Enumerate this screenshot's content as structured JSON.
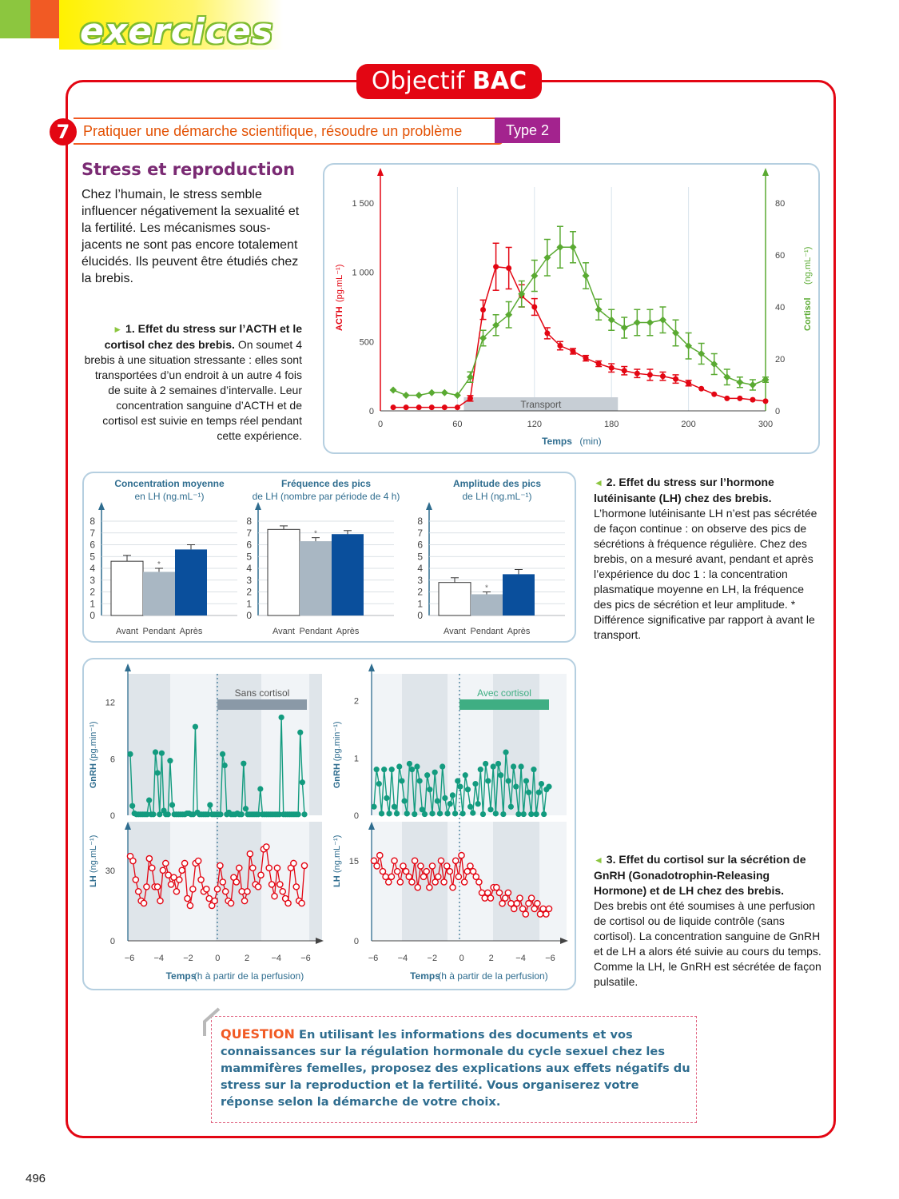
{
  "header": {
    "section_label": "exercices",
    "badge_prefix": "Objectif",
    "badge_strong": "BAC"
  },
  "exercise": {
    "number": "7",
    "title": "Pratiquer une démarche scientifique, résoudre un problème",
    "type": "Type 2",
    "heading": "Stress et reproduction",
    "intro": "Chez l’humain, le stress semble influencer négativement la sexualité et la fertilité. Les mécanismes sous-jacents ne sont pas encore totalement élucidés. Ils peuvent être étudiés chez la brebis."
  },
  "doc1": {
    "title": "1. Effet du stress sur l’ACTH et le cortisol chez des brebis.",
    "text": "On soumet 4 brebis à une situation stressante : elles sont transportées d’un endroit à un autre 4 fois de suite à 2 semaines d’intervalle. Leur concentration sanguine d’ACTH et de cortisol est suivie en temps réel pendant cette expérience."
  },
  "doc2": {
    "title": "2. Effet du stress sur l’hormone lutéinisante (LH) chez des brebis.",
    "text": "L’hormone lutéinisante LH n’est pas sécrétée de façon continue : on observe des pics de sécrétions à fréquence régulière. Chez des brebis, on a mesuré avant, pendant et après l’expérience du doc 1 : la concentration plasmatique moyenne en LH, la fréquence des pics de sécrétion et leur amplitude. * Différence significative par rapport à avant le transport."
  },
  "doc3": {
    "title": "3. Effet du cortisol sur la sécrétion de GnRH (Gonadotrophin-Releasing Hormone) et de LH chez des brebis.",
    "text": "Des brebis ont été soumises à une perfusion de cortisol ou de liquide contrôle (sans cortisol). La concentration sanguine de GnRH et de LH a alors été suivie au cours du temps. Comme la LH, le GnRH est sécrétée de façon pulsatile."
  },
  "question": {
    "label": "QUESTION",
    "text": "En utilisant les informations des documents et vos connaissances sur la régulation hormonale du cycle sexuel chez les mammifères femelles, proposez des explications aux effets négatifs du stress sur la reproduction et la fertilité. Vous organiserez votre réponse selon la démarche de votre choix."
  },
  "page_number": "496",
  "colors": {
    "red": "#e30613",
    "green": "#5aaa32",
    "teal": "#139b7f",
    "dark_blue": "#0a4f9c",
    "grey_bar": "#a9b7c3",
    "purple": "#a3238e"
  },
  "chart_data": [
    {
      "type": "line",
      "xlabel": "Temps",
      "xunit": "(min)",
      "xticks": [
        "0",
        "60",
        "120",
        "180",
        "200",
        "300"
      ],
      "ylabel_left": "ACTH",
      "yunit_left": "(pg.mL⁻¹)",
      "yticks_left": [
        "0",
        "500",
        "1 000",
        "1 500"
      ],
      "ylim_left": [
        0,
        1500
      ],
      "ylabel_right": "Cortisol",
      "yunit_right": "(ng.mL⁻¹)",
      "yticks_right": [
        "0",
        "20",
        "40",
        "60",
        "80"
      ],
      "ylim_right": [
        0,
        80
      ],
      "annotation": "Transport",
      "annotation_range": [
        65,
        185
      ],
      "series": [
        {
          "axis": "left",
          "x": [
            10,
            20,
            30,
            40,
            50,
            60,
            70,
            80,
            90,
            100,
            110,
            120,
            130,
            140,
            150,
            160,
            170,
            180,
            190,
            200,
            210,
            220,
            230,
            240,
            250,
            260,
            270,
            280,
            290,
            300
          ],
          "y": [
            25,
            25,
            25,
            25,
            25,
            25,
            90,
            730,
            1040,
            1030,
            830,
            750,
            560,
            470,
            430,
            380,
            340,
            310,
            290,
            270,
            260,
            250,
            230,
            200,
            160,
            120,
            90,
            90,
            80,
            70
          ],
          "err": [
            0,
            0,
            0,
            0,
            0,
            0,
            20,
            70,
            170,
            150,
            80,
            60,
            40,
            30,
            20,
            20,
            20,
            30,
            30,
            30,
            40,
            30,
            30,
            20,
            0,
            0,
            0,
            0,
            0,
            0
          ]
        },
        {
          "axis": "right",
          "x": [
            10,
            20,
            30,
            40,
            50,
            60,
            70,
            80,
            90,
            100,
            110,
            120,
            130,
            140,
            150,
            160,
            170,
            180,
            190,
            200,
            210,
            220,
            230,
            240,
            250,
            260,
            270,
            280,
            290,
            300
          ],
          "y": [
            8,
            6,
            6,
            7,
            7,
            6,
            13,
            28,
            33,
            37,
            45,
            52,
            59,
            63,
            63,
            52,
            39,
            35,
            32,
            34,
            34,
            35,
            30,
            25,
            22,
            18,
            13,
            11,
            10,
            12
          ],
          "err": [
            0,
            0,
            0,
            0,
            0,
            0,
            2,
            3,
            4,
            5,
            5,
            6,
            7,
            8,
            6,
            5,
            4,
            4,
            4,
            5,
            5,
            5,
            5,
            5,
            4,
            4,
            3,
            2,
            2,
            1
          ]
        }
      ]
    },
    {
      "type": "bar",
      "title": "Concentration moyenne en LH",
      "unit": "(ng.mL⁻¹)",
      "categories": [
        "Avant",
        "Pendant",
        "Après"
      ],
      "values": [
        4.6,
        3.7,
        5.6
      ],
      "err": [
        0.5,
        0.3,
        0.4
      ],
      "significant": [
        false,
        true,
        false
      ],
      "ylim": [
        0,
        8
      ],
      "yticks": [
        "0",
        "1",
        "2",
        "3",
        "4",
        "5",
        "6",
        "7",
        "8"
      ]
    },
    {
      "type": "bar",
      "title": "Fréquence des pics de LH",
      "unit": "(nombre par période de 4 h)",
      "categories": [
        "Avant",
        "Pendant",
        "Après"
      ],
      "values": [
        7.3,
        6.3,
        6.9
      ],
      "err": [
        0.3,
        0.3,
        0.3
      ],
      "significant": [
        false,
        true,
        false
      ],
      "ylim": [
        0,
        8
      ],
      "yticks": [
        "0",
        "1",
        "2",
        "3",
        "4",
        "5",
        "6",
        "7",
        "8"
      ]
    },
    {
      "type": "bar",
      "title": "Amplitude des pics de LH",
      "unit": "(ng.mL⁻¹)",
      "categories": [
        "Avant",
        "Pendant",
        "Après"
      ],
      "values": [
        2.8,
        1.8,
        3.5
      ],
      "err": [
        0.4,
        0.2,
        0.4
      ],
      "significant": [
        false,
        true,
        false
      ],
      "ylim": [
        0,
        8
      ],
      "yticks": [
        "0",
        "1",
        "2",
        "3",
        "4",
        "5",
        "6",
        "7",
        "8"
      ]
    },
    {
      "type": "line",
      "panel_label": "Sans cortisol",
      "xlabel": "Temps",
      "xunit": "(h à partir de la perfusion)",
      "xticks": [
        "−6",
        "−4",
        "−2",
        "0",
        "2",
        "−4",
        "−6"
      ],
      "gnrh": {
        "ylabel": "GnRH",
        "unit": "(pg.min⁻¹)",
        "yticks": [
          "0",
          "6",
          "12"
        ],
        "ylim": [
          0,
          14
        ],
        "values": [
          6.5,
          1,
          0.2,
          0.1,
          0.1,
          0.1,
          0.1,
          0.1,
          0.1,
          1.6,
          0.1,
          0.1,
          6.7,
          4.5,
          0.1,
          6.6,
          0.5,
          0.1,
          0.1,
          5.8,
          1.1,
          0.1,
          0.1,
          0.1,
          0.1,
          0.1,
          0.1,
          0.2,
          0.2,
          0.1,
          0.1,
          9.4,
          0.3,
          0.1,
          0.1,
          0.1,
          0.1,
          0.1,
          1.1,
          0.1,
          0.1,
          0.1,
          0.1,
          0.1,
          6.5,
          5.3,
          0.1,
          0.3,
          0.1,
          0.1,
          0.1,
          0.2,
          0.1,
          0.1,
          5.5,
          0.7,
          0.1,
          0.1,
          0.1,
          0.1,
          0.1,
          0.1,
          2.8,
          0.1,
          0.1,
          0.1,
          0.1,
          0.1,
          0.1,
          0.1,
          0.1,
          0.1,
          10.4,
          0.1,
          0.1,
          0.1,
          0.1,
          0.1,
          0.1,
          0.1,
          0.1,
          8.8,
          3.5,
          0.1
        ]
      },
      "lh": {
        "ylabel": "LH",
        "unit": "(ng.mL⁻¹)",
        "yticks": [
          "0",
          "30"
        ],
        "ylim": [
          0,
          50
        ],
        "values": [
          36,
          34,
          26,
          21,
          17,
          16,
          23,
          35,
          31,
          23,
          23,
          17,
          30,
          33,
          28,
          24,
          27,
          21,
          26,
          30,
          33,
          18,
          15,
          22,
          33,
          34,
          26,
          21,
          22,
          18,
          15,
          17,
          22,
          32,
          25,
          21,
          17,
          16,
          27,
          25,
          31,
          21,
          17,
          21,
          37,
          31,
          24,
          23,
          28,
          39,
          40,
          31,
          24,
          19,
          31,
          24,
          21,
          18,
          16,
          31,
          33,
          23,
          17,
          16,
          32
        ]
      }
    },
    {
      "type": "line",
      "panel_label": "Avec cortisol",
      "xlabel": "Temps",
      "xunit": "(h à partir de la perfusion)",
      "xticks": [
        "−6",
        "−4",
        "−2",
        "0",
        "2",
        "−4",
        "−6"
      ],
      "gnrh": {
        "ylabel": "GnRH",
        "unit": "(pg.min⁻¹)",
        "yticks": [
          "0",
          "1",
          "2"
        ],
        "ylim": [
          0,
          2.3
        ],
        "values": [
          0.15,
          0.8,
          0.55,
          0.03,
          0.8,
          0.3,
          0.03,
          0.8,
          0.15,
          0.03,
          0.85,
          0.6,
          0.25,
          0.03,
          0.9,
          0.8,
          0.02,
          0.85,
          0.6,
          0.1,
          0.02,
          0.7,
          0.45,
          0.03,
          0.75,
          0.25,
          0.03,
          0.85,
          0.3,
          0.03,
          0.2,
          0.35,
          0.03,
          0.6,
          0.5,
          0.03,
          0.7,
          0.45,
          0.15,
          0.04,
          0.55,
          0.2,
          0.8,
          0.02,
          0.9,
          0.6,
          0.1,
          0.85,
          0.03,
          0.9,
          0.7,
          0.02,
          1.1,
          0.6,
          0.15,
          0.85,
          0.5,
          0.02,
          0.85,
          0.02,
          0.6,
          0.4,
          0.02,
          0.8,
          0.02,
          0.4,
          0.55,
          0.02,
          0.45,
          0.5
        ]
      },
      "lh": {
        "ylabel": "LH",
        "unit": "(ng.mL⁻¹)",
        "yticks": [
          "0",
          "15"
        ],
        "ylim": [
          0,
          22
        ],
        "values": [
          15,
          14,
          16,
          13,
          12,
          11,
          12,
          15,
          13,
          11,
          14,
          13,
          12,
          11,
          15,
          10,
          14,
          12,
          13,
          10,
          14,
          11,
          12,
          15,
          11,
          14,
          13,
          10,
          15,
          12,
          16,
          11,
          13,
          14,
          13,
          12,
          11,
          9,
          8,
          9,
          8,
          10,
          10,
          9,
          7,
          8,
          9,
          7,
          6,
          7,
          8,
          6,
          5,
          7,
          8,
          6,
          7,
          5,
          6,
          5,
          6
        ]
      }
    }
  ]
}
